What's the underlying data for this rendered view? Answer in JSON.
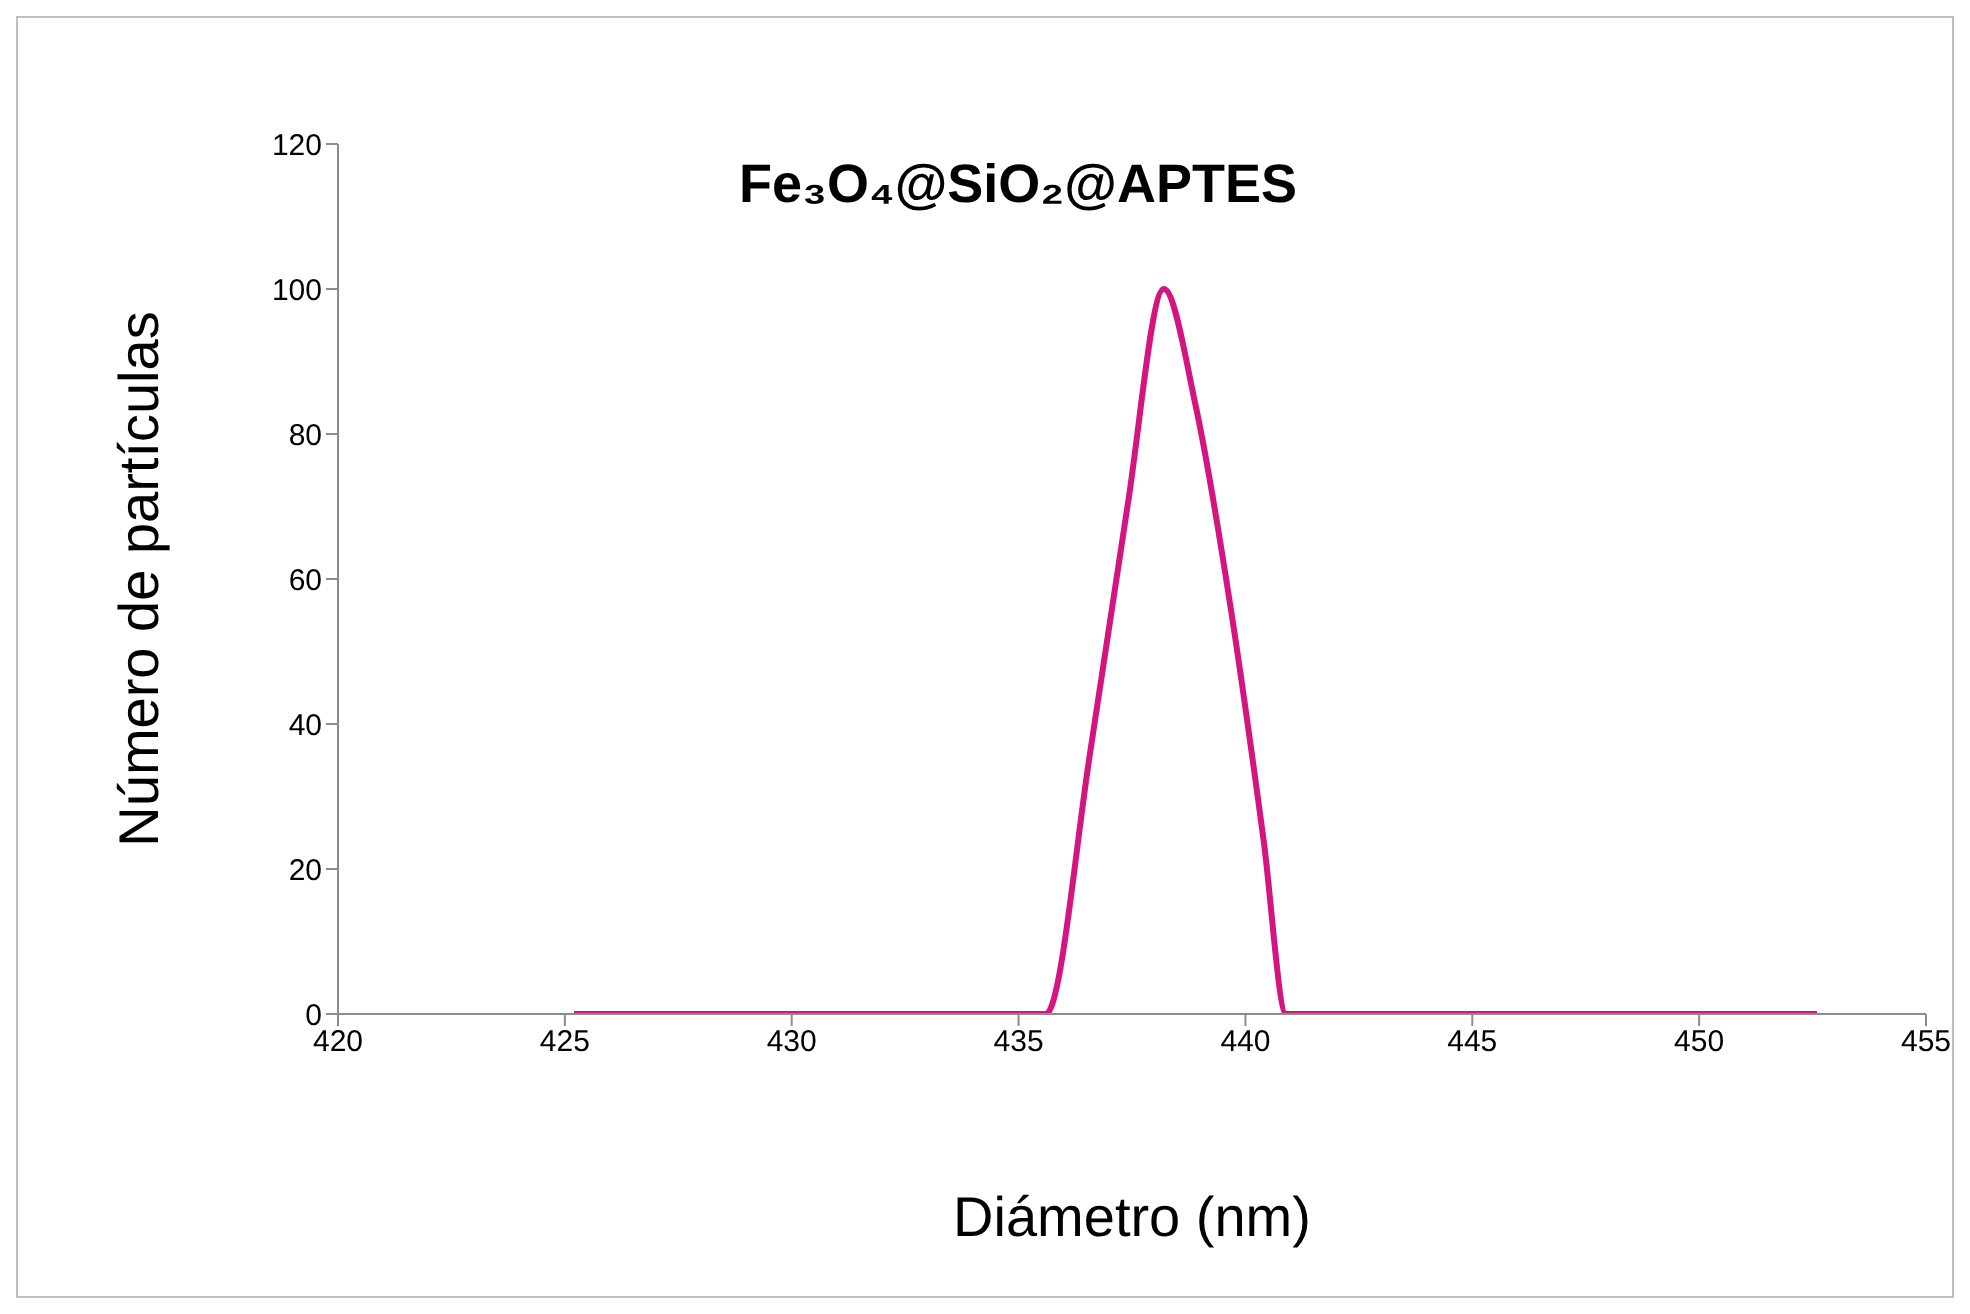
{
  "chart_data": {
    "type": "line",
    "title": "Fe₃O₄@SiO₂@APTES",
    "xlabel": "Diámetro (nm)",
    "ylabel": "Número de partículas",
    "x": [
      425.2,
      434.8,
      435.6,
      436.6,
      437.4,
      438.2,
      438.9,
      439.7,
      440.4,
      440.9,
      441.8,
      452.6
    ],
    "series": [
      {
        "color": "#d4147f",
        "values": [
          0,
          0,
          0,
          37,
          70,
          100,
          84,
          55,
          24,
          0,
          0,
          0
        ]
      }
    ],
    "xlim": [
      420,
      455
    ],
    "xticks": [
      420,
      425,
      430,
      435,
      440,
      445,
      450,
      455
    ],
    "ylim": [
      0,
      120
    ],
    "yticks": [
      0,
      20,
      40,
      60,
      80,
      100,
      120
    ],
    "grid": false,
    "legend": false,
    "marker": "none",
    "line_style": "solid"
  }
}
